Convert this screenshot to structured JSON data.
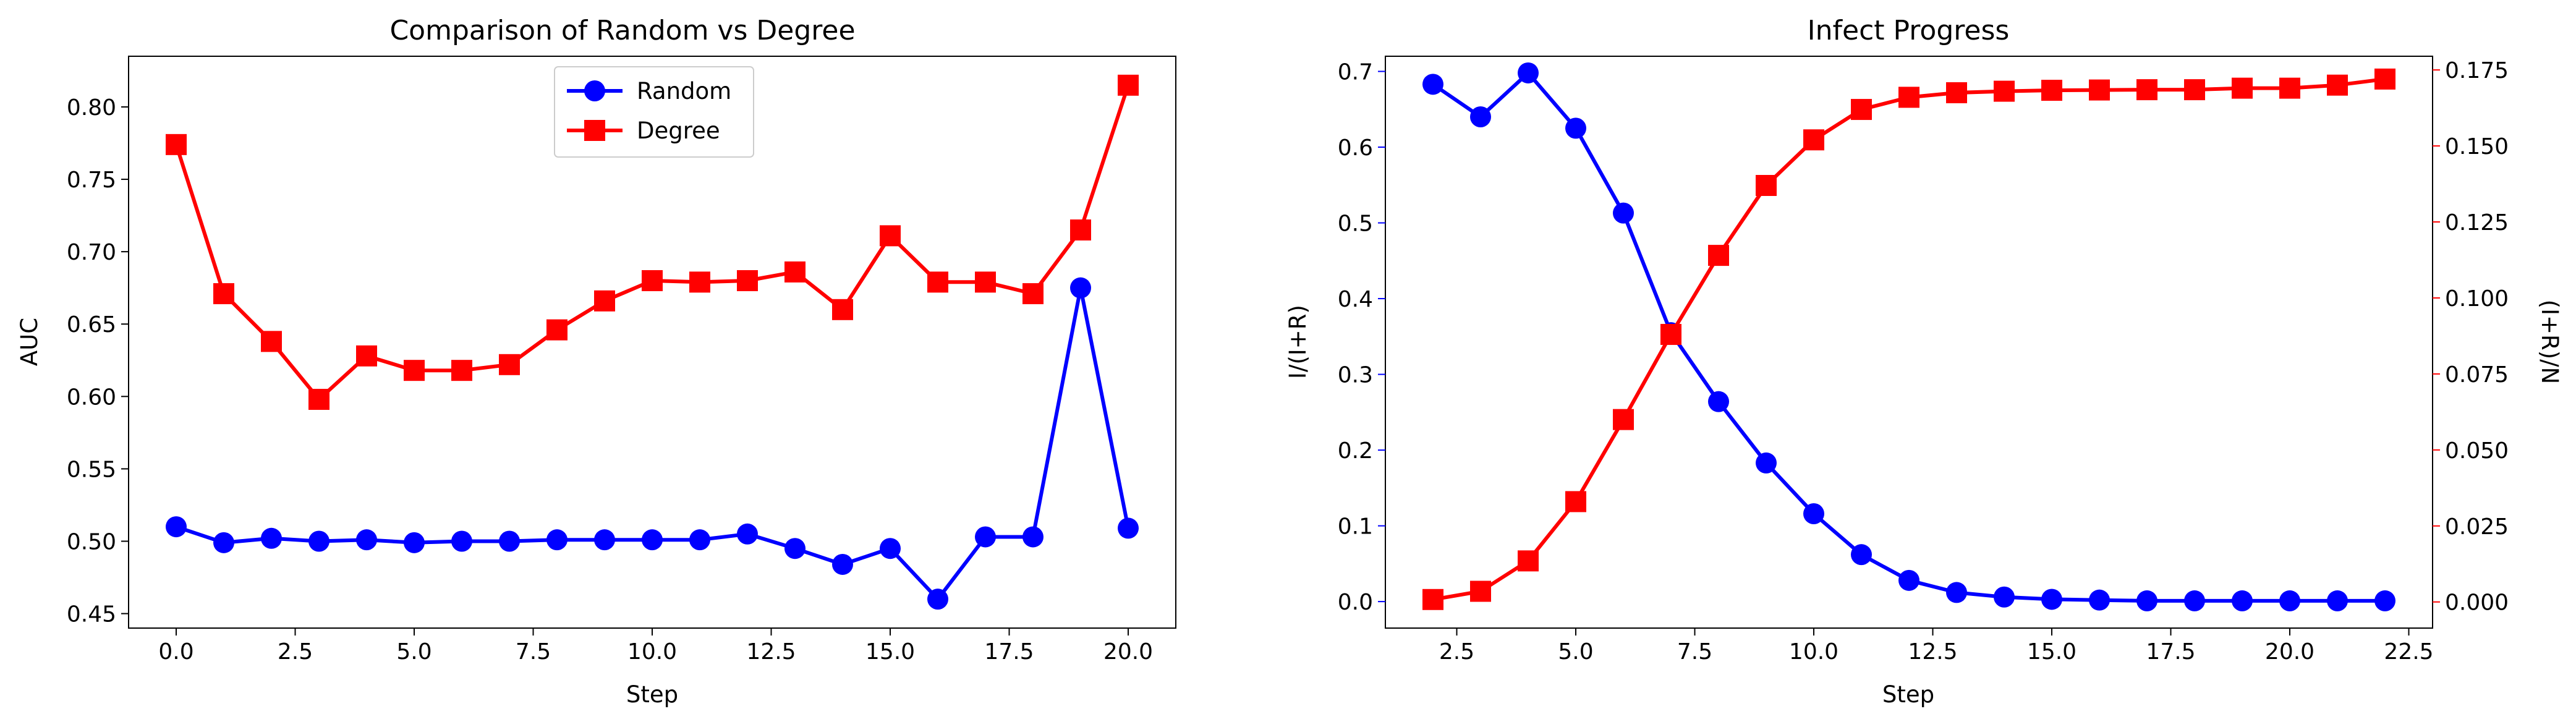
{
  "chart_data": [
    {
      "type": "line",
      "title": "Comparison of Random vs Degree",
      "xlabel": "Step",
      "ylabel": "AUC",
      "xlim": [
        -1,
        21
      ],
      "ylim": [
        0.44,
        0.835
      ],
      "xticks": [
        0.0,
        2.5,
        5.0,
        7.5,
        10.0,
        12.5,
        15.0,
        17.5,
        20.0
      ],
      "xtick_labels": [
        "0.0",
        "2.5",
        "5.0",
        "7.5",
        "10.0",
        "12.5",
        "15.0",
        "17.5",
        "20.0"
      ],
      "yticks": [
        0.45,
        0.5,
        0.55,
        0.6,
        0.65,
        0.7,
        0.75,
        0.8
      ],
      "ytick_labels": [
        "0.45",
        "0.50",
        "0.55",
        "0.60",
        "0.65",
        "0.70",
        "0.75",
        "0.80"
      ],
      "grid": false,
      "legend": "upper center",
      "series": [
        {
          "name": "Random",
          "color": "#0000ff",
          "marker": "circle",
          "x": [
            0,
            1,
            2,
            3,
            4,
            5,
            6,
            7,
            8,
            9,
            10,
            11,
            12,
            13,
            14,
            15,
            16,
            17,
            18,
            19,
            20
          ],
          "y": [
            0.51,
            0.499,
            0.502,
            0.5,
            0.501,
            0.499,
            0.5,
            0.5,
            0.501,
            0.501,
            0.501,
            0.501,
            0.505,
            0.495,
            0.484,
            0.495,
            0.46,
            0.503,
            0.503,
            0.675,
            0.509
          ]
        },
        {
          "name": "Degree",
          "color": "#ff0000",
          "marker": "square",
          "x": [
            0,
            1,
            2,
            3,
            4,
            5,
            6,
            7,
            8,
            9,
            10,
            11,
            12,
            13,
            14,
            15,
            16,
            17,
            18,
            19,
            20
          ],
          "y": [
            0.774,
            0.671,
            0.638,
            0.598,
            0.628,
            0.618,
            0.618,
            0.622,
            0.646,
            0.666,
            0.68,
            0.679,
            0.68,
            0.686,
            0.66,
            0.711,
            0.679,
            0.679,
            0.671,
            0.715,
            0.815
          ]
        }
      ]
    },
    {
      "type": "line",
      "title": "Infect Progress",
      "xlabel": "Step",
      "xlim": [
        1,
        23
      ],
      "xticks": [
        2.5,
        5.0,
        7.5,
        10.0,
        12.5,
        15.0,
        17.5,
        20.0,
        22.5
      ],
      "xtick_labels": [
        "2.5",
        "5.0",
        "7.5",
        "10.0",
        "12.5",
        "15.0",
        "17.5",
        "20.0",
        "22.5"
      ],
      "grid": false,
      "axes": {
        "left": {
          "label": "I/(I+R)",
          "color": "#0000ff",
          "ylim": [
            -0.035,
            0.72
          ],
          "ticks": [
            0.0,
            0.1,
            0.2,
            0.3,
            0.4,
            0.5,
            0.6,
            0.7
          ],
          "tick_labels": [
            "0.0",
            "0.1",
            "0.2",
            "0.3",
            "0.4",
            "0.5",
            "0.6",
            "0.7"
          ]
        },
        "right": {
          "label": "(I+R)/N",
          "color": "#ff0000",
          "ylim": [
            -0.0086,
            0.1795
          ],
          "ticks": [
            0.0,
            0.025,
            0.05,
            0.075,
            0.1,
            0.125,
            0.15,
            0.175
          ],
          "tick_labels": [
            "0.000",
            "0.025",
            "0.050",
            "0.075",
            "0.100",
            "0.125",
            "0.150",
            "0.175"
          ]
        }
      },
      "series": [
        {
          "axis": "left",
          "color": "#0000ff",
          "marker": "circle",
          "x": [
            2,
            3,
            4,
            5,
            6,
            7,
            8,
            9,
            10,
            11,
            12,
            13,
            14,
            15,
            16,
            17,
            18,
            19,
            20,
            21,
            22
          ],
          "y": [
            0.683,
            0.64,
            0.698,
            0.625,
            0.513,
            0.355,
            0.264,
            0.183,
            0.116,
            0.062,
            0.028,
            0.012,
            0.006,
            0.003,
            0.002,
            0.001,
            0.001,
            0.001,
            0.001,
            0.001,
            0.001
          ]
        },
        {
          "axis": "right",
          "color": "#ff0000",
          "marker": "square",
          "x": [
            2,
            3,
            4,
            5,
            6,
            7,
            8,
            9,
            10,
            11,
            12,
            13,
            14,
            15,
            16,
            17,
            18,
            19,
            20,
            21,
            22
          ],
          "y": [
            0.0008,
            0.0035,
            0.0135,
            0.033,
            0.06,
            0.088,
            0.114,
            0.137,
            0.152,
            0.162,
            0.166,
            0.1675,
            0.168,
            0.1683,
            0.1684,
            0.1685,
            0.1685,
            0.169,
            0.169,
            0.17,
            0.172
          ]
        }
      ]
    }
  ]
}
